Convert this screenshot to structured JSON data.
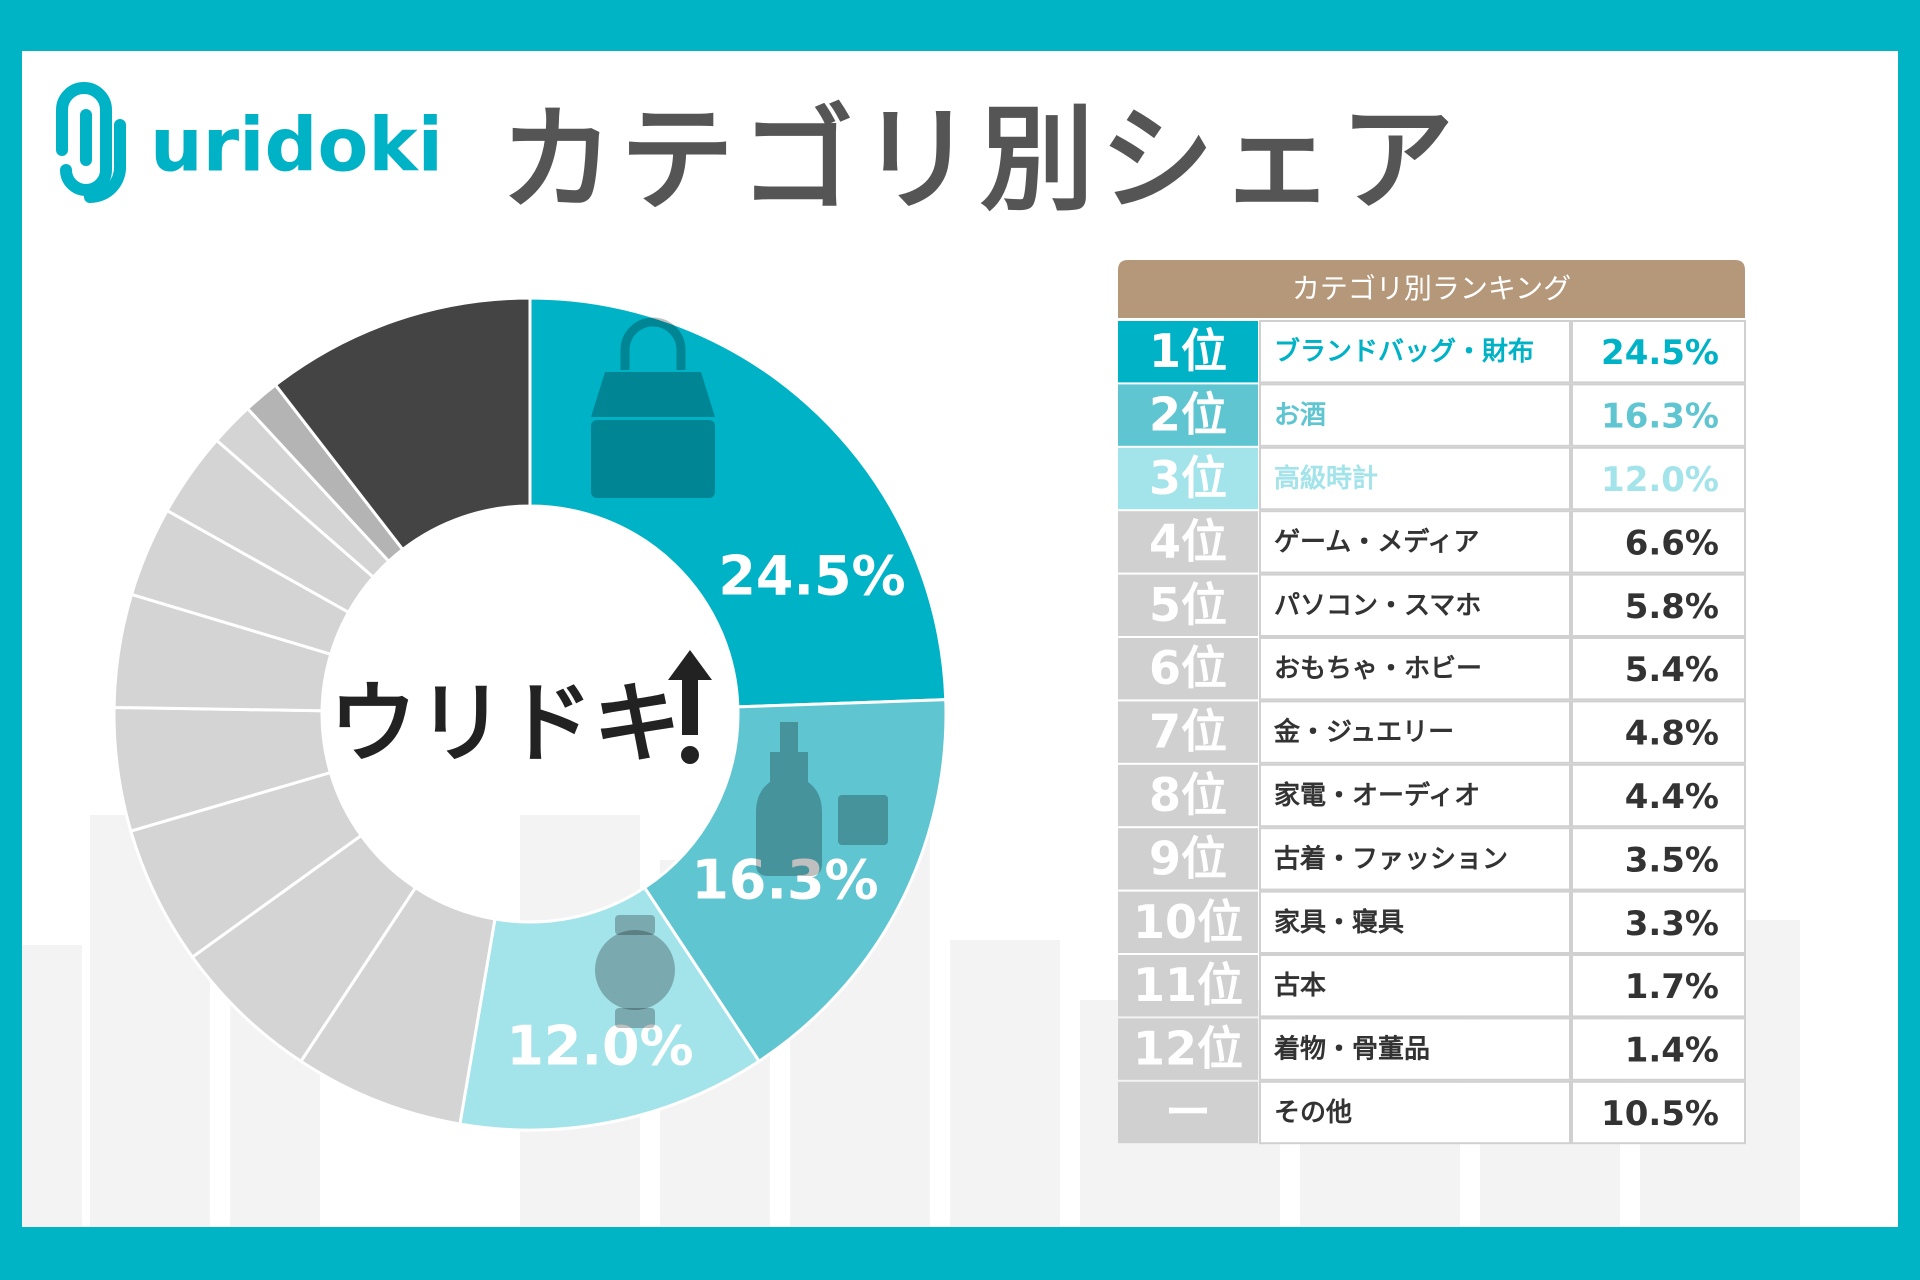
{
  "logo": "uridoki",
  "title": "カテゴリ別シェア",
  "center_label": "ウリドキ",
  "ranking": {
    "title": "カテゴリ別ランキング",
    "ranks": [
      "1位",
      "2位",
      "3位",
      "4位",
      "5位",
      "6位",
      "7位",
      "8位",
      "9位",
      "10位",
      "11位",
      "12位",
      "ー"
    ]
  },
  "chart_data": {
    "type": "donut",
    "categories": [
      "ブランドバッグ・財布",
      "お酒",
      "高級時計",
      "ゲーム・メディア",
      "パソコン・スマホ",
      "おもちゃ・ホビー",
      "金・ジュエリー",
      "家電・オーディオ",
      "古着・ファッション",
      "家具・寝具",
      "古本",
      "着物・骨董品",
      "その他"
    ],
    "values": [
      24.5,
      16.3,
      12.0,
      6.6,
      5.8,
      5.4,
      4.8,
      4.4,
      3.5,
      3.3,
      1.7,
      1.4,
      10.5
    ],
    "value_labels": [
      "24.5%",
      "16.3%",
      "12.0%",
      "6.6%",
      "5.8%",
      "5.4%",
      "4.8%",
      "4.4%",
      "3.5%",
      "3.3%",
      "1.7%",
      "1.4%",
      "10.5%"
    ],
    "colors": [
      "#00b2c6",
      "#5ec5d1",
      "#a3e3ea",
      "#d4d4d4",
      "#d4d4d4",
      "#d4d4d4",
      "#d4d4d4",
      "#d4d4d4",
      "#d4d4d4",
      "#d4d4d4",
      "#d4d4d4",
      "#b4b4b4",
      "#444444"
    ]
  }
}
